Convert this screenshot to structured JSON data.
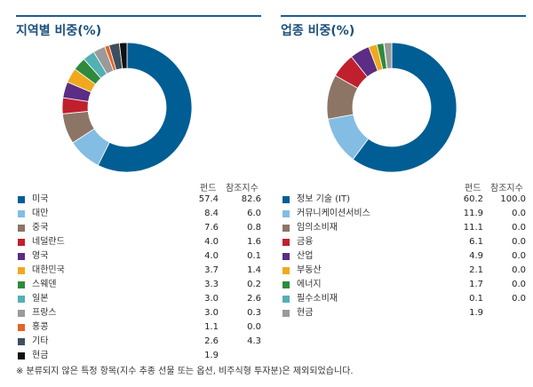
{
  "footnote": "※ 분류되지 않은 특정 항목(지수 추종 선물 또는 옵션, 비주식형 투자분)은 제외되었습니다.",
  "chart_data": [
    {
      "type": "pie",
      "title": "지역별 비중(%)",
      "value_headers": [
        "펀드",
        "참조지수"
      ],
      "series": [
        {
          "name": "펀드",
          "values": [
            57.4,
            8.4,
            7.6,
            4.0,
            4.0,
            3.7,
            3.3,
            3.0,
            3.0,
            1.1,
            2.6,
            1.9
          ]
        },
        {
          "name": "참조지수",
          "values": [
            82.6,
            6.0,
            0.8,
            1.6,
            0.1,
            1.4,
            0.2,
            2.6,
            0.3,
            0.0,
            4.3,
            null
          ]
        }
      ],
      "categories": [
        "미국",
        "대만",
        "중국",
        "네덜란드",
        "영국",
        "대한민국",
        "스웨덴",
        "일본",
        "프랑스",
        "홍콩",
        "기타",
        "현금"
      ],
      "colors": [
        "#005e94",
        "#83bde3",
        "#8d7565",
        "#c0202e",
        "#5b2d84",
        "#f1a81f",
        "#2f8a3c",
        "#53b0b3",
        "#9a9a9a",
        "#e26426",
        "#3c4e5f",
        "#111111"
      ]
    },
    {
      "type": "pie",
      "title": "업종 비중(%)",
      "value_headers": [
        "펀드",
        "참조지수"
      ],
      "series": [
        {
          "name": "펀드",
          "values": [
            60.2,
            11.9,
            11.1,
            6.1,
            4.9,
            2.1,
            1.7,
            0.1,
            1.9
          ]
        },
        {
          "name": "참조지수",
          "values": [
            100.0,
            0.0,
            0.0,
            0.0,
            0.0,
            0.0,
            0.0,
            0.0,
            null
          ]
        }
      ],
      "categories": [
        "정보 기술 (IT)",
        "커뮤니케이션서비스",
        "임의소비재",
        "금융",
        "산업",
        "부동산",
        "에너지",
        "필수소비재",
        "현금"
      ],
      "colors": [
        "#005e94",
        "#83bde3",
        "#8d7565",
        "#c0202e",
        "#5b2d84",
        "#f1a81f",
        "#2f8a3c",
        "#53b0b3",
        "#9a9a9a"
      ]
    }
  ]
}
